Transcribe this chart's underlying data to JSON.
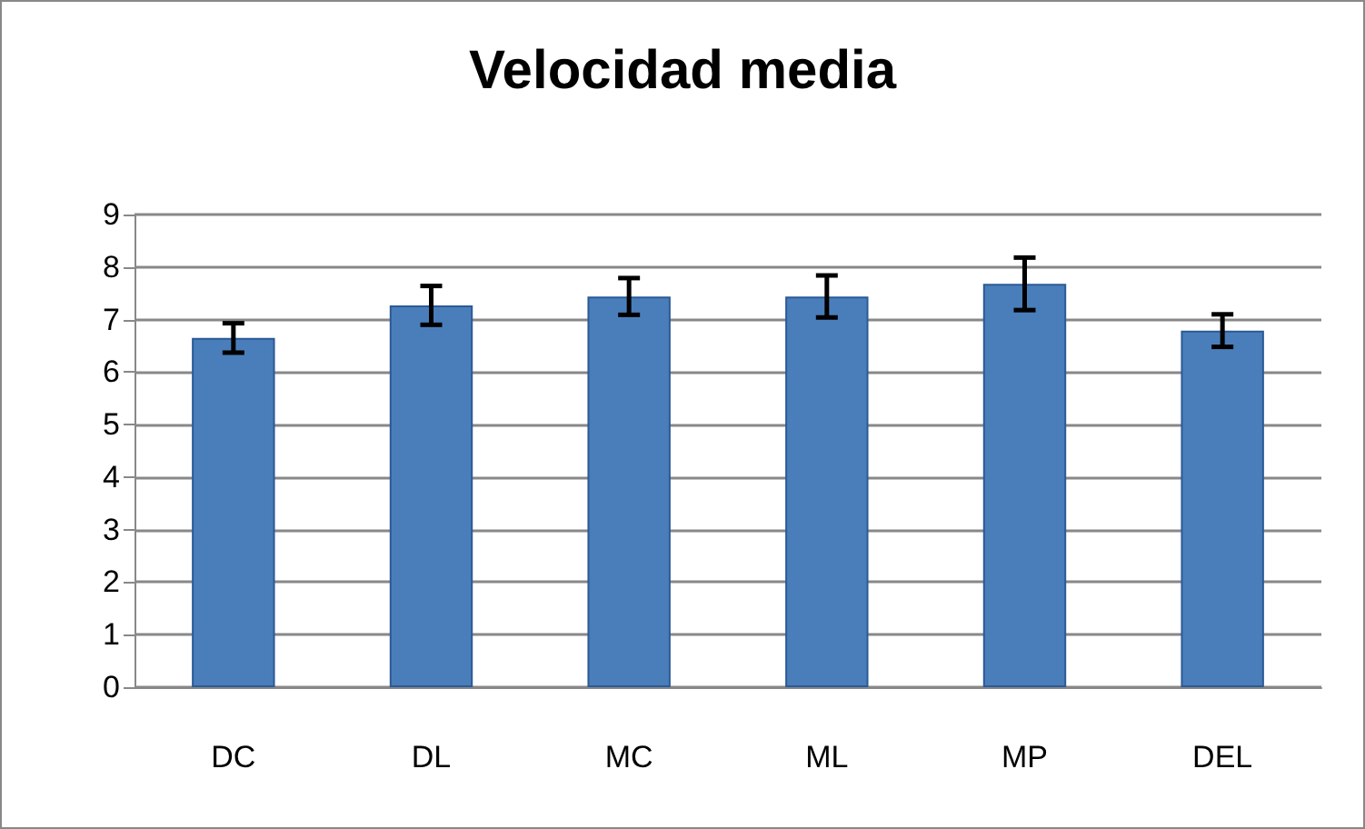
{
  "chart_data": {
    "type": "bar",
    "title": "Velocidad media",
    "categories": [
      "DC",
      "DL",
      "MC",
      "ML",
      "MP",
      "DEL"
    ],
    "series": [
      {
        "color": "#4a7ebb",
        "values": [
          6.65,
          7.27,
          7.44,
          7.44,
          7.68,
          6.79
        ],
        "errors": [
          0.28,
          0.37,
          0.35,
          0.4,
          0.5,
          0.31
        ]
      }
    ],
    "ylim": [
      0,
      9
    ],
    "yticks": [
      0,
      1,
      2,
      3,
      4,
      5,
      6,
      7,
      8,
      9
    ],
    "grid": "y"
  }
}
